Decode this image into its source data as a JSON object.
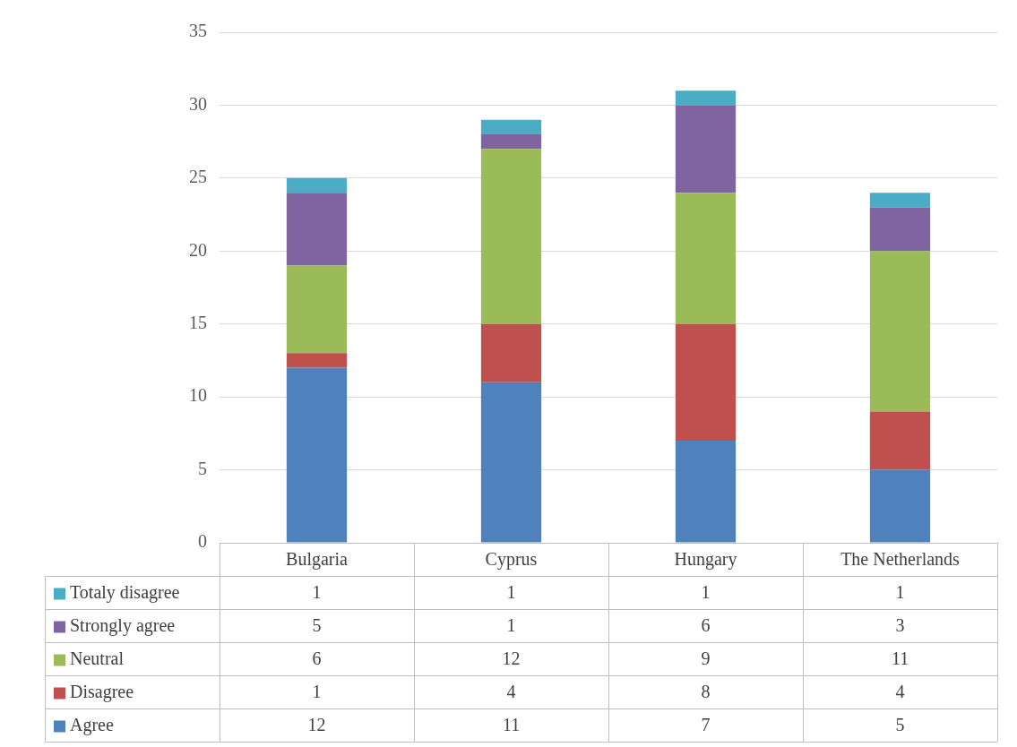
{
  "chart_data": {
    "type": "bar",
    "stacked": true,
    "categories": [
      "Bulgaria",
      "Cyprus",
      "Hungary",
      "The Netherlands"
    ],
    "series": [
      {
        "name": "Agree",
        "color": "#4f81bd",
        "values": [
          12,
          11,
          7,
          5
        ]
      },
      {
        "name": "Disagree",
        "color": "#c0504d",
        "values": [
          1,
          4,
          8,
          4
        ]
      },
      {
        "name": "Neutral",
        "color": "#9bbb59",
        "values": [
          6,
          12,
          9,
          11
        ]
      },
      {
        "name": "Strongly agree",
        "color": "#8064a2",
        "values": [
          5,
          1,
          6,
          3
        ]
      },
      {
        "name": "Totaly disagree",
        "color": "#4bacc6",
        "values": [
          1,
          1,
          1,
          1
        ]
      }
    ],
    "ylim": [
      0,
      35
    ],
    "yticks": [
      0,
      5,
      10,
      15,
      20,
      25,
      30,
      35
    ],
    "grid": "y",
    "legend": "bottom",
    "data_labels": true
  }
}
